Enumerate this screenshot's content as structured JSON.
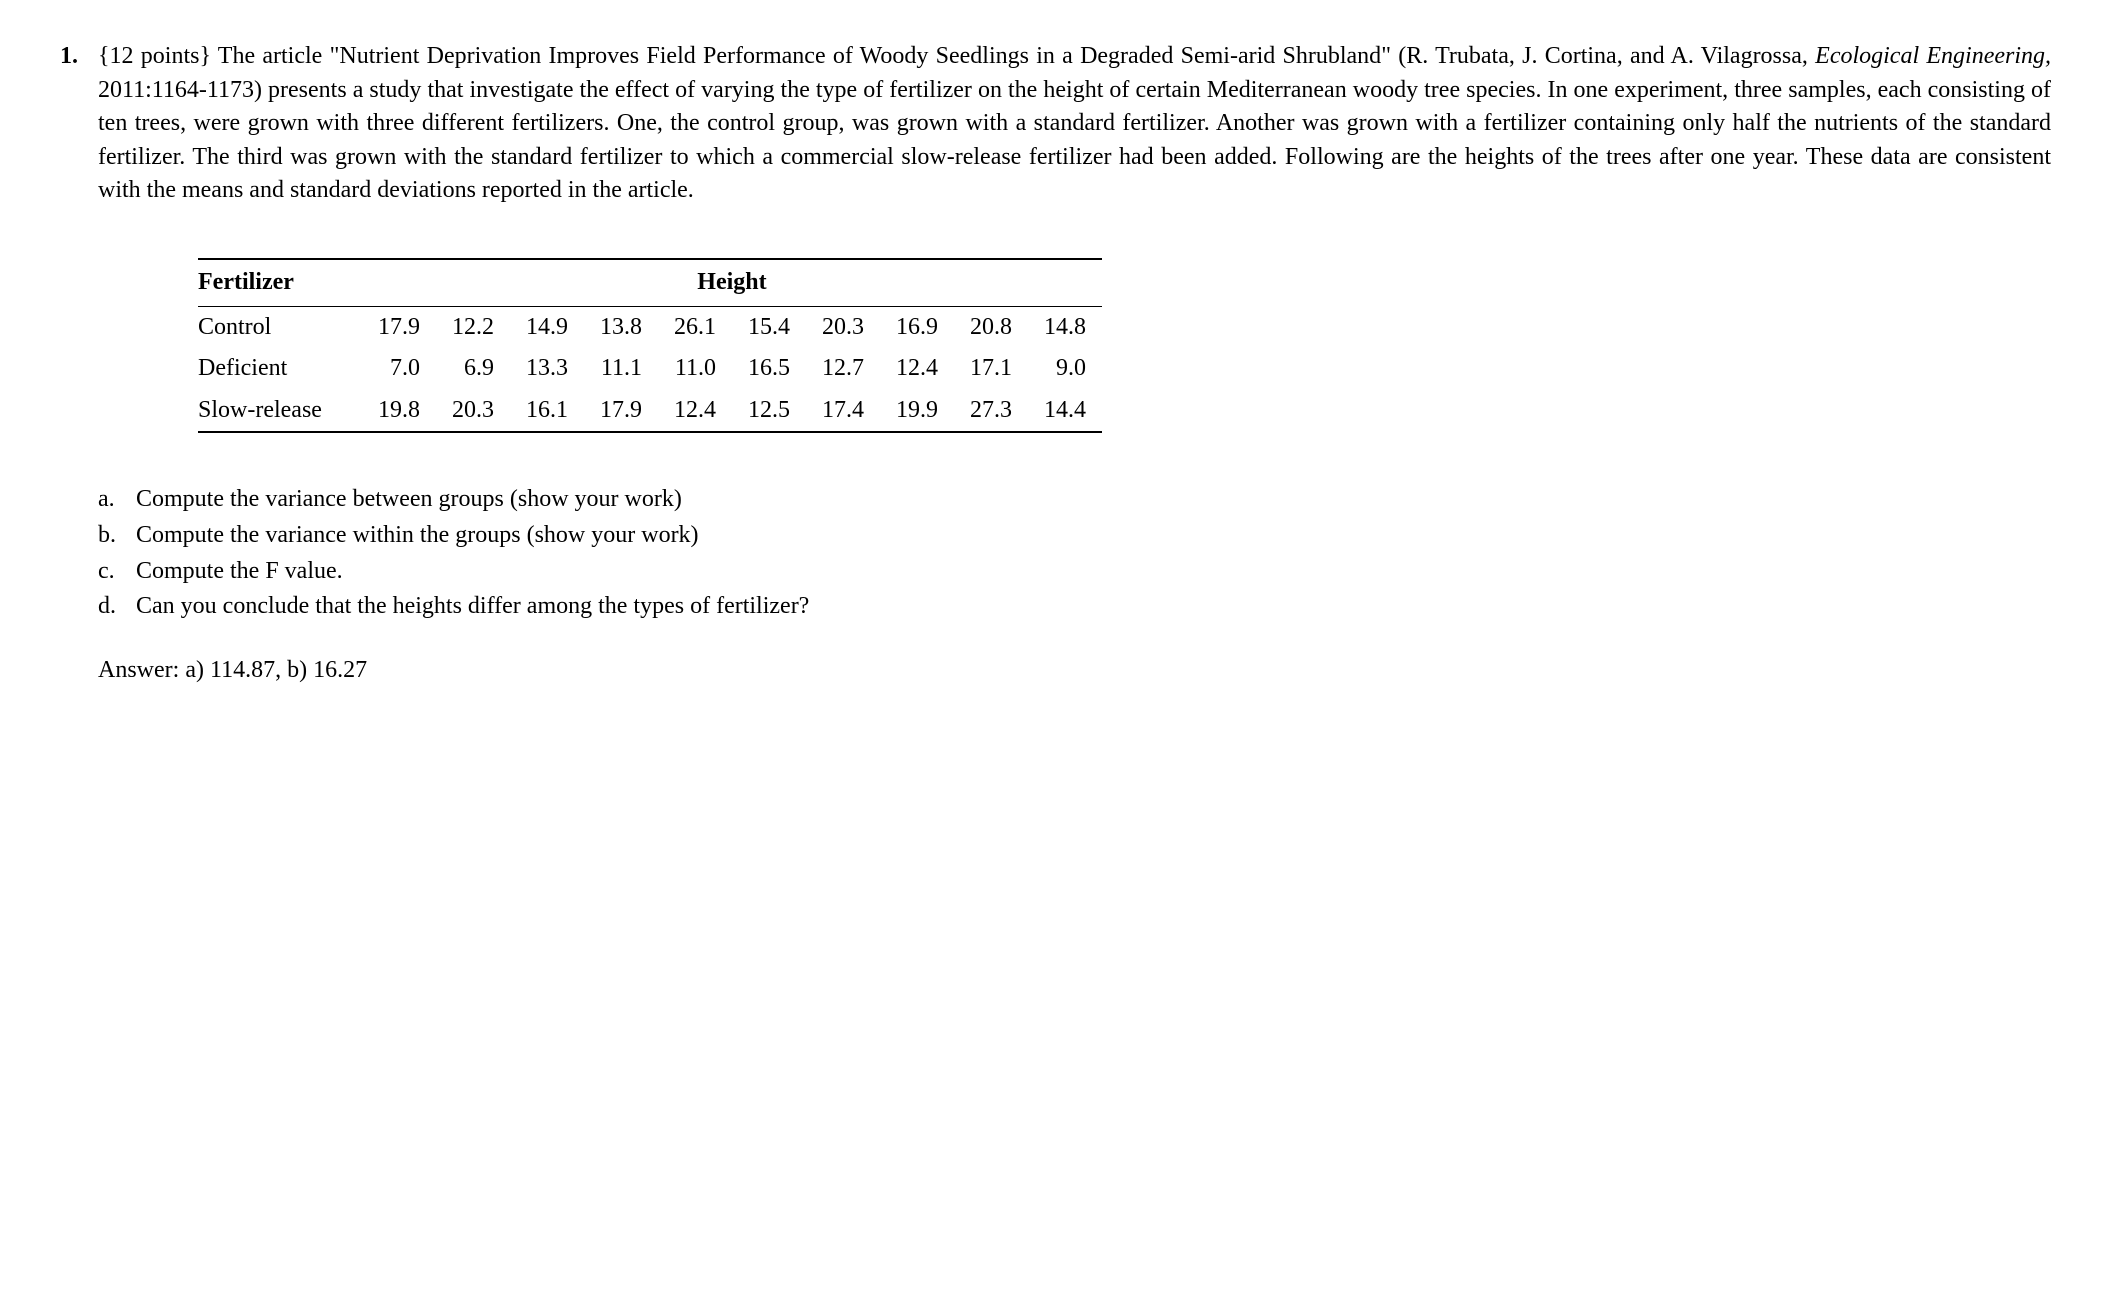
{
  "problem": {
    "number": "1.",
    "points_prefix": "{12 points} The article \"",
    "article_title": "Nutrient Deprivation Improves Field Performance of Woody Seedlings in a Degraded Semi-arid Shrubland",
    "authors_prefix": "\" (R. Trubata, J. Cortina, and A. Vilagrossa, ",
    "journal": "Ecological Engineering,",
    "citation_rest": " 2011:1164-1173) presents a study that investigate the effect of varying the type of fertilizer on the height of certain Mediterranean woody tree species. In one experiment, three samples, each consisting of ten trees, were grown with three different fertilizers. One, the control group, was grown with a standard fertilizer. Another was grown with a fertilizer containing only half the nutrients of the standard fertilizer. The third was grown with the standard fertilizer to which  a commercial slow-release fertilizer had been added. Following are the heights of the trees after one year. These data are consistent with the means and standard deviations reported in the article."
  },
  "table": {
    "header_fertilizer": "Fertilizer",
    "header_height": "Height",
    "rows": [
      {
        "label": "Control",
        "values": [
          "17.9",
          "12.2",
          "14.9",
          "13.8",
          "26.1",
          "15.4",
          "20.3",
          "16.9",
          "20.8",
          "14.8"
        ]
      },
      {
        "label": "Deficient",
        "values": [
          "7.0",
          "6.9",
          "13.3",
          "11.1",
          "11.0",
          "16.5",
          "12.7",
          "12.4",
          "17.1",
          "9.0"
        ]
      },
      {
        "label": "Slow-release",
        "values": [
          "19.8",
          "20.3",
          "16.1",
          "17.9",
          "12.4",
          "12.5",
          "17.4",
          "19.9",
          "27.3",
          "14.4"
        ]
      }
    ]
  },
  "subquestions": {
    "a": {
      "letter": "a.",
      "text": "Compute the variance between groups (show your work)"
    },
    "b": {
      "letter": "b.",
      "text": "Compute the variance within the groups (show your work)"
    },
    "c": {
      "letter": "c.",
      "text": "Compute the F value."
    },
    "d": {
      "letter": "d.",
      "text": "Can you conclude that the heights differ among the types of fertilizer?"
    }
  },
  "answer": "Answer: a) 114.87, b) 16.27"
}
